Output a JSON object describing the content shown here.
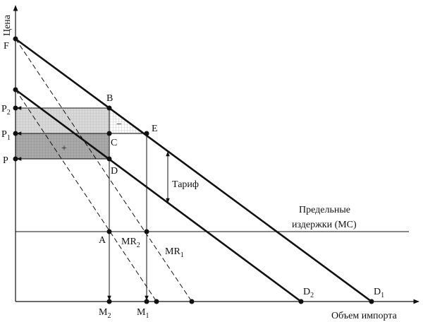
{
  "axes": {
    "y": "Цена",
    "x": "Объем импорта"
  },
  "points": {
    "F": "F",
    "B": "B",
    "E": "E",
    "C": "C",
    "D": "D",
    "A": "A",
    "P": "P",
    "P1": {
      "base": "P",
      "sub": "1"
    },
    "P2": {
      "base": "P",
      "sub": "2"
    },
    "M1": {
      "base": "M",
      "sub": "1"
    },
    "M2": {
      "base": "M",
      "sub": "2"
    },
    "D1": {
      "base": "D",
      "sub": "1"
    },
    "D2": {
      "base": "D",
      "sub": "2"
    },
    "MR1": {
      "base": "MR",
      "sub": "1"
    },
    "MR2": {
      "base": "MR",
      "sub": "2"
    }
  },
  "areas": {
    "gain": "+",
    "loss": "−"
  },
  "tariff": "Тариф",
  "mc": {
    "line1": "Предельные",
    "line2": "издержки (MC)"
  }
}
